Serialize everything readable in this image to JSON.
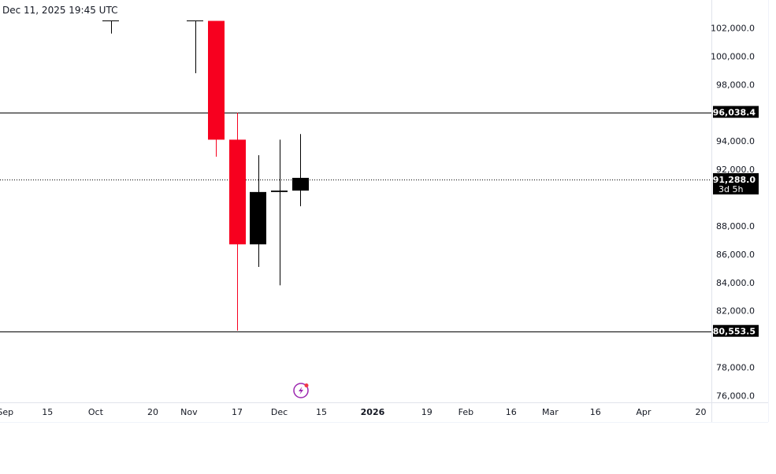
{
  "header": {
    "timestamp": "Dec 11, 2025 19:45 UTC"
  },
  "colors": {
    "bearish": "#f7001f",
    "bullish": "#000000",
    "text": "#131722",
    "background": "#ffffff",
    "icon": "#9c27b0"
  },
  "icons": {
    "events": "lightning-event-icon"
  },
  "chart_data": {
    "type": "candlestick",
    "interval": "weekly",
    "y_axis": {
      "ticks": [
        76000,
        78000,
        80000,
        82000,
        84000,
        86000,
        88000,
        90000,
        92000,
        94000,
        96000,
        98000,
        100000,
        102000
      ],
      "tick_labels": [
        "76,000.0",
        "78,000.0",
        "",
        "82,000.0",
        "84,000.0",
        "86,000.0",
        "88,000.0",
        "",
        "92,000.0",
        "94,000.0",
        "",
        "98,000.0",
        "100,000.0",
        "102,000.0"
      ],
      "range": [
        75000,
        102500
      ]
    },
    "x_axis": {
      "range": [
        "2025-08-25",
        "2026-04-28"
      ],
      "ticks": [
        {
          "date": "2025-09-01",
          "label": "Sep"
        },
        {
          "date": "2025-09-15",
          "label": "15"
        },
        {
          "date": "2025-10-01",
          "label": "Oct"
        },
        {
          "date": "2025-10-20",
          "label": "20"
        },
        {
          "date": "2025-11-01",
          "label": "Nov"
        },
        {
          "date": "2025-11-17",
          "label": "17"
        },
        {
          "date": "2025-12-01",
          "label": "Dec"
        },
        {
          "date": "2025-12-15",
          "label": "15"
        },
        {
          "date": "2026-01-01",
          "label": "2026",
          "bold": true
        },
        {
          "date": "2026-01-19",
          "label": "19"
        },
        {
          "date": "2026-02-01",
          "label": "Feb"
        },
        {
          "date": "2026-02-16",
          "label": "16"
        },
        {
          "date": "2026-03-01",
          "label": "Mar"
        },
        {
          "date": "2026-03-16",
          "label": "16"
        },
        {
          "date": "2026-04-01",
          "label": "Apr"
        },
        {
          "date": "2026-04-20",
          "label": "20"
        }
      ]
    },
    "candles": [
      {
        "date": "2025-10-06",
        "open": 103000,
        "high": 103500,
        "low": 101600,
        "close": 103000
      },
      {
        "date": "2025-11-03",
        "open": 103000,
        "high": 103000,
        "low": 98800,
        "close": 103000
      },
      {
        "date": "2025-11-10",
        "open": 102500,
        "high": 102500,
        "low": 92900,
        "close": 94100
      },
      {
        "date": "2025-11-17",
        "open": 94100,
        "high": 96000,
        "low": 80600,
        "close": 86700
      },
      {
        "date": "2025-11-24",
        "open": 86700,
        "high": 93000,
        "low": 85100,
        "close": 90400
      },
      {
        "date": "2025-12-01",
        "open": 90400,
        "high": 94100,
        "low": 83800,
        "close": 90500
      },
      {
        "date": "2025-12-08",
        "open": 90500,
        "high": 94500,
        "low": 89400,
        "close": 91400
      }
    ],
    "horizontal_lines": [
      {
        "value": 96038.4,
        "label": "96,038.4",
        "style": "solid"
      },
      {
        "value": 80553.5,
        "label": "80,553.5",
        "style": "solid"
      },
      {
        "value": 91288.0,
        "label": "91,288.0",
        "style": "dotted",
        "countdown": "3d 5h"
      }
    ]
  }
}
